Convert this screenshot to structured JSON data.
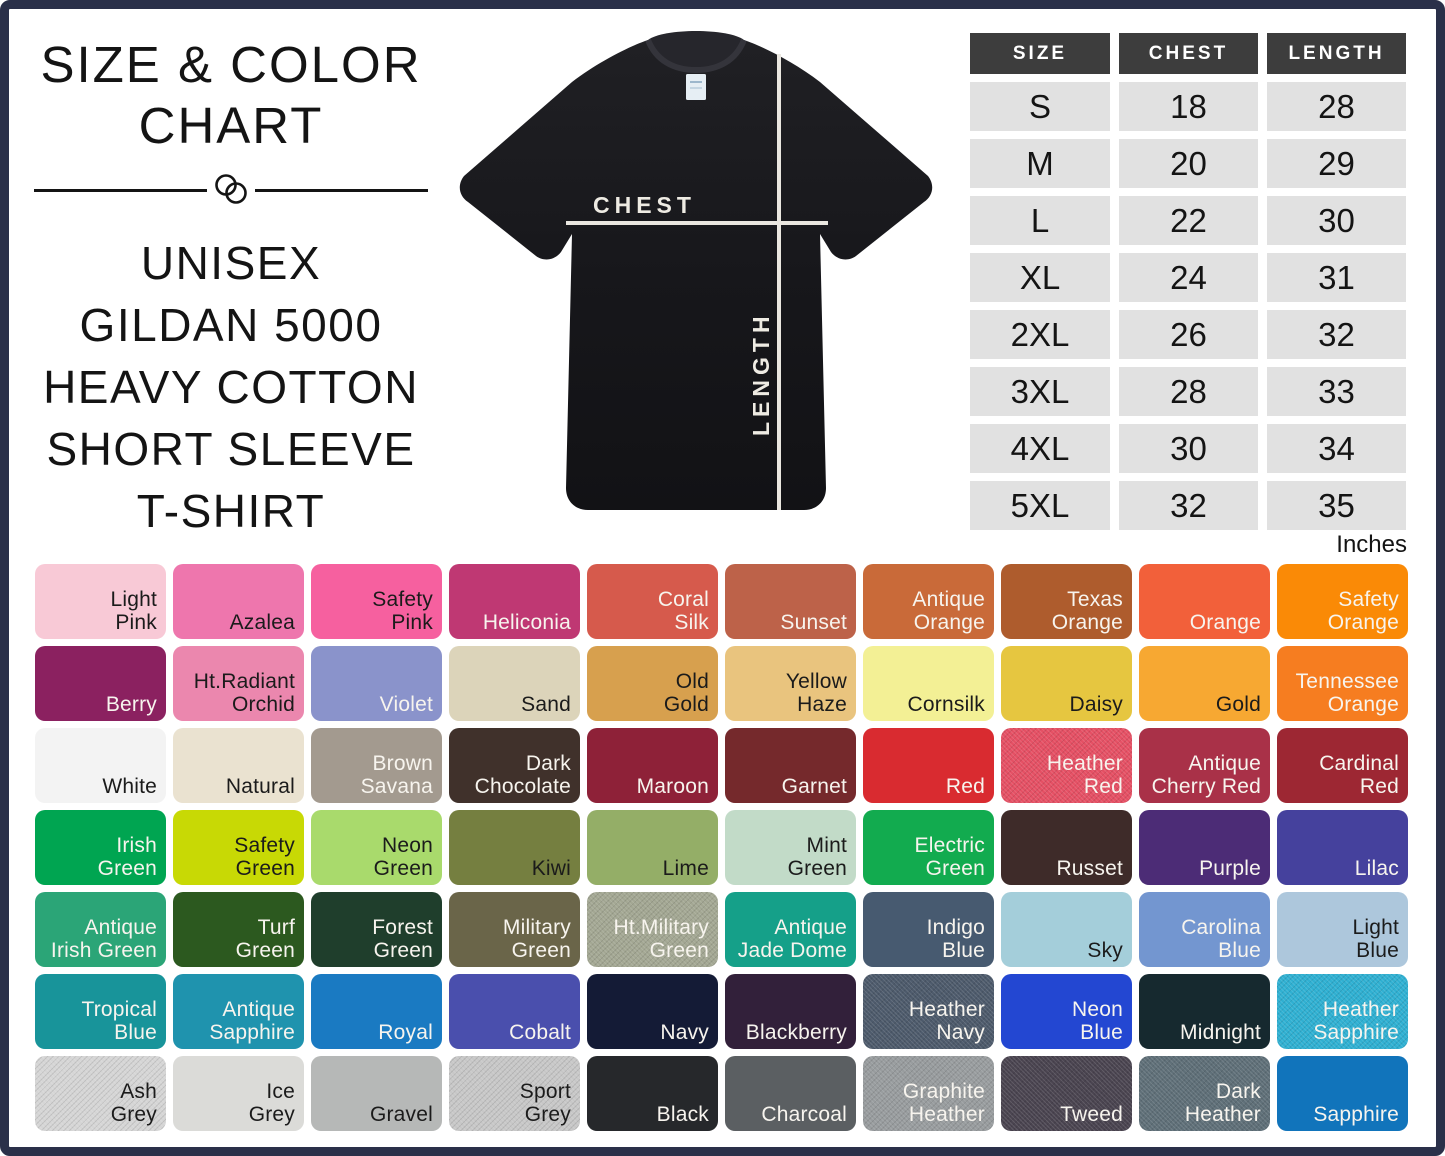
{
  "title": {
    "line1": "SIZE & COLOR",
    "line2": "CHART",
    "subtitle_lines": [
      "UNISEX",
      "GILDAN 5000",
      "HEAVY COTTON",
      "SHORT SLEEVE",
      "T-SHIRT"
    ]
  },
  "icons": {
    "divider": "interlocked-rings-icon"
  },
  "tshirt": {
    "chest_label": "CHEST",
    "length_label": "LENGTH"
  },
  "size_table": {
    "headers": [
      "SIZE",
      "CHEST",
      "LENGTH"
    ],
    "rows": [
      [
        "S",
        "18",
        "28"
      ],
      [
        "M",
        "20",
        "29"
      ],
      [
        "L",
        "22",
        "30"
      ],
      [
        "XL",
        "24",
        "31"
      ],
      [
        "2XL",
        "26",
        "32"
      ],
      [
        "3XL",
        "28",
        "33"
      ],
      [
        "4XL",
        "30",
        "34"
      ],
      [
        "5XL",
        "32",
        "35"
      ]
    ],
    "unit_note": "Inches"
  },
  "colors": {
    "frame_border": "#2a3049",
    "table_header_bg": "#3d3d3d",
    "table_row_bg": "#e1e1e1",
    "tee_black": "#17171b"
  },
  "swatches": [
    {
      "name": "Light\nPink",
      "hex": "#f8c9d6",
      "text": "dark"
    },
    {
      "name": "Azalea",
      "hex": "#ee76ad",
      "text": "dark"
    },
    {
      "name": "Safety\nPink",
      "hex": "#f6609f",
      "text": "dark"
    },
    {
      "name": "Heliconia",
      "hex": "#bf3873",
      "text": "light"
    },
    {
      "name": "Coral\nSilk",
      "hex": "#d65a4c",
      "text": "light"
    },
    {
      "name": "Sunset",
      "hex": "#bd6249",
      "text": "light"
    },
    {
      "name": "Antique\nOrange",
      "hex": "#c96a39",
      "text": "light"
    },
    {
      "name": "Texas\nOrange",
      "hex": "#ae5c2d",
      "text": "light"
    },
    {
      "name": "Orange",
      "hex": "#f2603a",
      "text": "light"
    },
    {
      "name": "Safety\nOrange",
      "hex": "#fa8a06",
      "text": "light"
    },
    {
      "name": "Berry",
      "hex": "#8b2160",
      "text": "light"
    },
    {
      "name": "Ht.Radiant\nOrchid",
      "hex": "#eb87ae",
      "text": "dark"
    },
    {
      "name": "Violet",
      "hex": "#8a93cb",
      "text": "light"
    },
    {
      "name": "Sand",
      "hex": "#dcd4ba",
      "text": "dark"
    },
    {
      "name": "Old\nGold",
      "hex": "#d7a04e",
      "text": "dark"
    },
    {
      "name": "Yellow\nHaze",
      "hex": "#e9c47e",
      "text": "dark"
    },
    {
      "name": "Cornsilk",
      "hex": "#f3f095",
      "text": "dark"
    },
    {
      "name": "Daisy",
      "hex": "#e6c640",
      "text": "dark"
    },
    {
      "name": "Gold",
      "hex": "#f7a832",
      "text": "dark"
    },
    {
      "name": "Tennessee\nOrange",
      "hex": "#f67d20",
      "text": "light"
    },
    {
      "name": "White",
      "hex": "#f3f3f3",
      "text": "dark"
    },
    {
      "name": "Natural",
      "hex": "#eae2d0",
      "text": "dark"
    },
    {
      "name": "Brown\nSavana",
      "hex": "#a39a8f",
      "text": "light"
    },
    {
      "name": "Dark\nChocolate",
      "hex": "#40312b",
      "text": "light"
    },
    {
      "name": "Maroon",
      "hex": "#8e2138",
      "text": "light"
    },
    {
      "name": "Garnet",
      "hex": "#75292c",
      "text": "light"
    },
    {
      "name": "Red",
      "hex": "#d92b30",
      "text": "light"
    },
    {
      "name": "Heather\nRed",
      "hex": "#e55064",
      "text": "light",
      "heather": true
    },
    {
      "name": "Antique\nCherry Red",
      "hex": "#a93148",
      "text": "light"
    },
    {
      "name": "Cardinal\nRed",
      "hex": "#9d2733",
      "text": "light"
    },
    {
      "name": "Irish\nGreen",
      "hex": "#00a551",
      "text": "light"
    },
    {
      "name": "Safety\nGreen",
      "hex": "#c8d905",
      "text": "dark"
    },
    {
      "name": "Neon\nGreen",
      "hex": "#a9da6c",
      "text": "dark"
    },
    {
      "name": "Kiwi",
      "hex": "#757f40",
      "text": "dark"
    },
    {
      "name": "Lime",
      "hex": "#94ae67",
      "text": "dark"
    },
    {
      "name": "Mint\nGreen",
      "hex": "#c2dbc8",
      "text": "dark"
    },
    {
      "name": "Electric\nGreen",
      "hex": "#12ab4f",
      "text": "light"
    },
    {
      "name": "Russet",
      "hex": "#3e2b29",
      "text": "light"
    },
    {
      "name": "Purple",
      "hex": "#4c2c76",
      "text": "light"
    },
    {
      "name": "Lilac",
      "hex": "#45419d",
      "text": "light"
    },
    {
      "name": "Antique\nIrish Green",
      "hex": "#2ba577",
      "text": "light"
    },
    {
      "name": "Turf\nGreen",
      "hex": "#2c591f",
      "text": "light"
    },
    {
      "name": "Forest\nGreen",
      "hex": "#1f3e2c",
      "text": "light"
    },
    {
      "name": "Military\nGreen",
      "hex": "#6a6549",
      "text": "light"
    },
    {
      "name": "Ht.Military\nGreen",
      "hex": "#a3a793",
      "text": "light",
      "heather": true
    },
    {
      "name": "Antique\nJade Dome",
      "hex": "#15a089",
      "text": "light"
    },
    {
      "name": "Indigo\nBlue",
      "hex": "#475a70",
      "text": "light"
    },
    {
      "name": "Sky",
      "hex": "#a4ceda",
      "text": "dark"
    },
    {
      "name": "Carolina\nBlue",
      "hex": "#7396d0",
      "text": "light"
    },
    {
      "name": "Light\nBlue",
      "hex": "#adc7dc",
      "text": "dark"
    },
    {
      "name": "Tropical\nBlue",
      "hex": "#18949a",
      "text": "light"
    },
    {
      "name": "Antique\nSapphire",
      "hex": "#1f93ae",
      "text": "light"
    },
    {
      "name": "Royal",
      "hex": "#1a7ac2",
      "text": "light"
    },
    {
      "name": "Cobalt",
      "hex": "#4a4fad",
      "text": "light"
    },
    {
      "name": "Navy",
      "hex": "#141b36",
      "text": "light"
    },
    {
      "name": "Blackberry",
      "hex": "#32203a",
      "text": "light"
    },
    {
      "name": "Heather\nNavy",
      "hex": "#4d5a6b",
      "text": "light",
      "heather": true
    },
    {
      "name": "Neon\nBlue",
      "hex": "#2347d2",
      "text": "light"
    },
    {
      "name": "Midnight",
      "hex": "#16292f",
      "text": "light"
    },
    {
      "name": "Heather\nSapphire",
      "hex": "#2fb0d2",
      "text": "light",
      "heather": true
    },
    {
      "name": "Ash\nGrey",
      "hex": "#d5d5d5",
      "text": "dark",
      "heather": true
    },
    {
      "name": "Ice\nGrey",
      "hex": "#dbdbd8",
      "text": "dark"
    },
    {
      "name": "Gravel",
      "hex": "#b6b8b7",
      "text": "dark"
    },
    {
      "name": "Sport\nGrey",
      "hex": "#c7c7c7",
      "text": "dark",
      "heather": true
    },
    {
      "name": "Black",
      "hex": "#26282b",
      "text": "light"
    },
    {
      "name": "Charcoal",
      "hex": "#5b5f62",
      "text": "light"
    },
    {
      "name": "Graphite\nHeather",
      "hex": "#989c9e",
      "text": "light",
      "heather": true
    },
    {
      "name": "Tweed",
      "hex": "#4a4450",
      "text": "light",
      "heather": true
    },
    {
      "name": "Dark\nHeather",
      "hex": "#5f6f78",
      "text": "light",
      "heather": true
    },
    {
      "name": "Sapphire",
      "hex": "#1174bb",
      "text": "light"
    }
  ]
}
